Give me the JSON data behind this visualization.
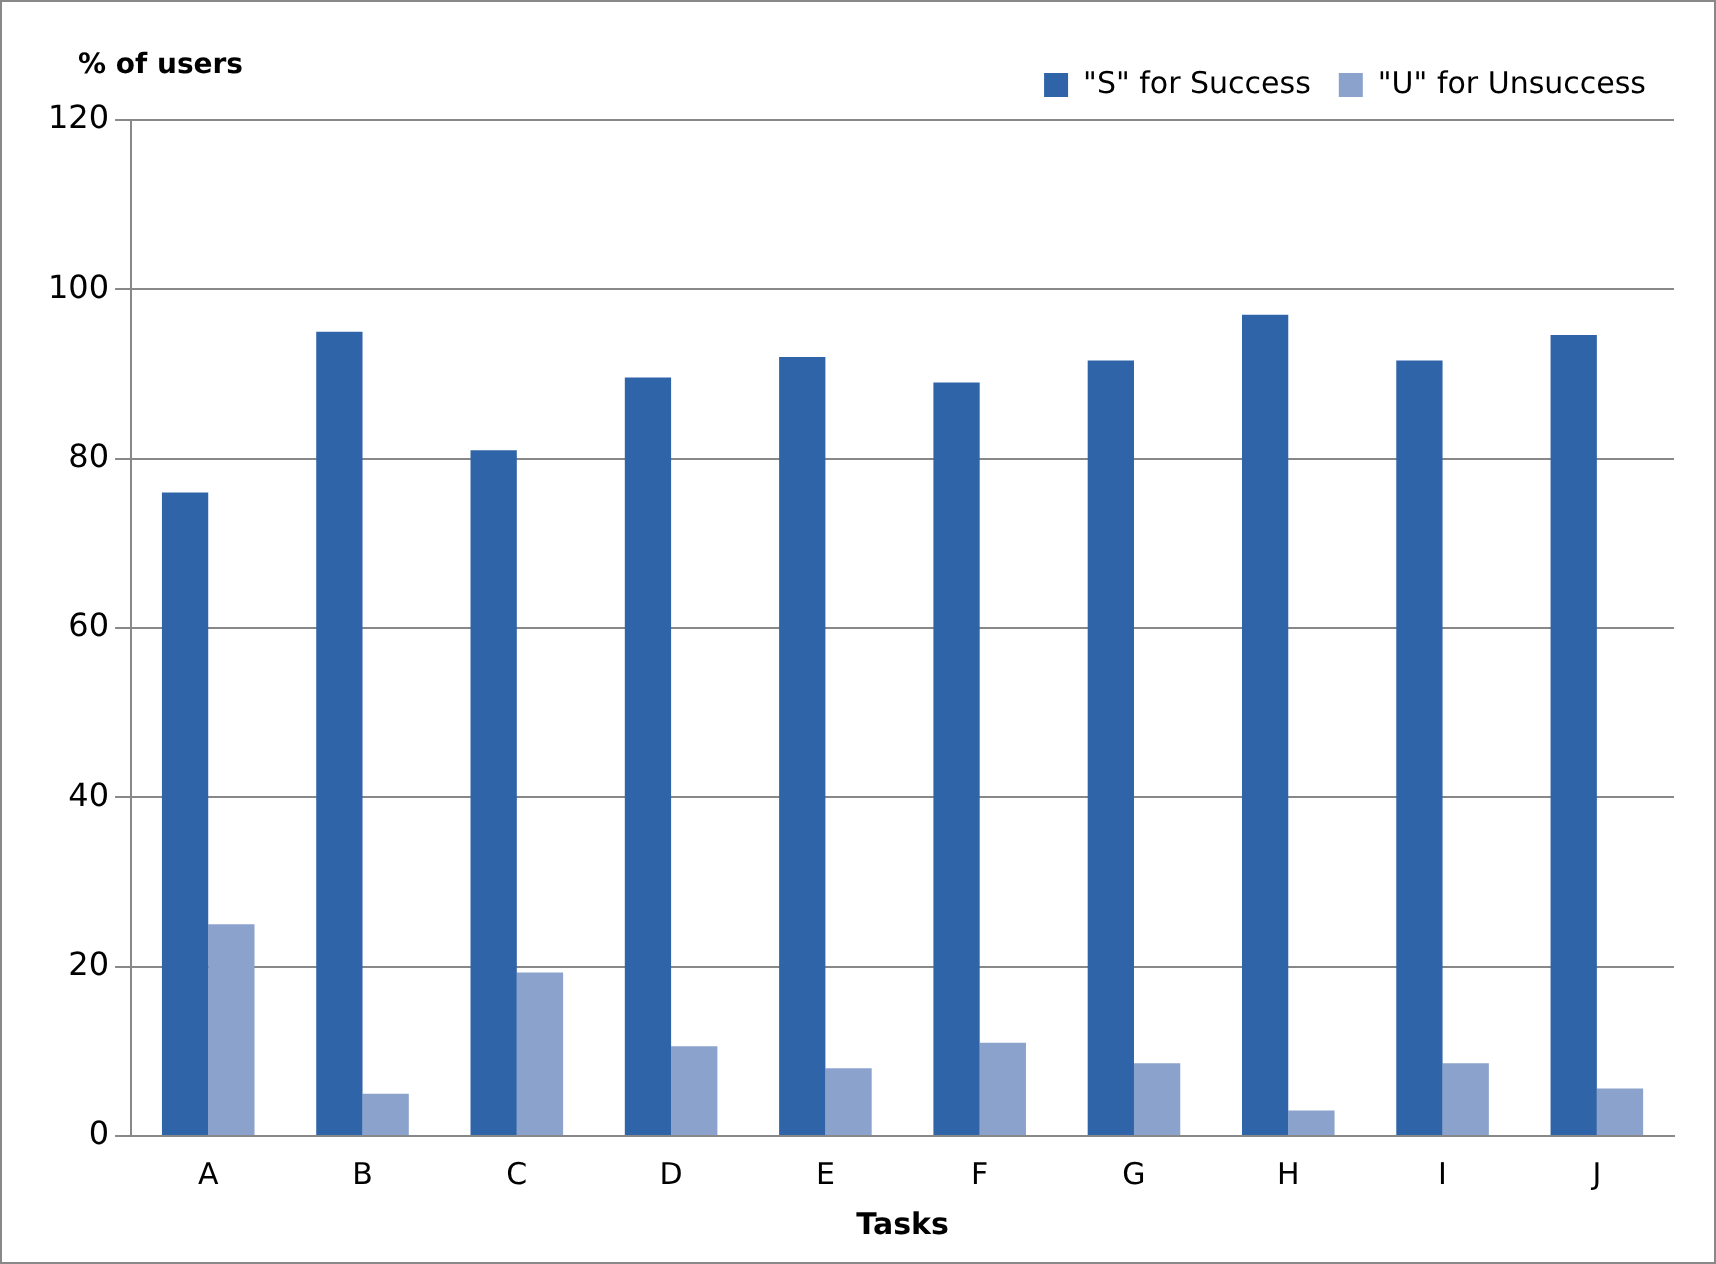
{
  "chart_data": {
    "type": "bar",
    "xlabel": "Tasks",
    "ylabel": "% of users",
    "categories": [
      "A",
      "B",
      "C",
      "D",
      "E",
      "F",
      "G",
      "H",
      "I",
      "J"
    ],
    "series": [
      {
        "name": "\"S\" for Success",
        "color": "#2f64a8",
        "values": [
          76,
          95,
          81,
          89.6,
          92,
          89,
          91.6,
          97,
          91.6,
          94.6
        ]
      },
      {
        "name": "\"U\" for Unsuccess",
        "color": "#8ba2cc",
        "values": [
          25,
          5,
          19.3,
          10.6,
          8,
          11,
          8.6,
          3,
          8.6,
          5.6
        ]
      }
    ],
    "ylim": [
      0,
      120
    ],
    "yticks": [
      0,
      20,
      40,
      60,
      80,
      100,
      120
    ],
    "grid": "y",
    "legend": "top right"
  }
}
